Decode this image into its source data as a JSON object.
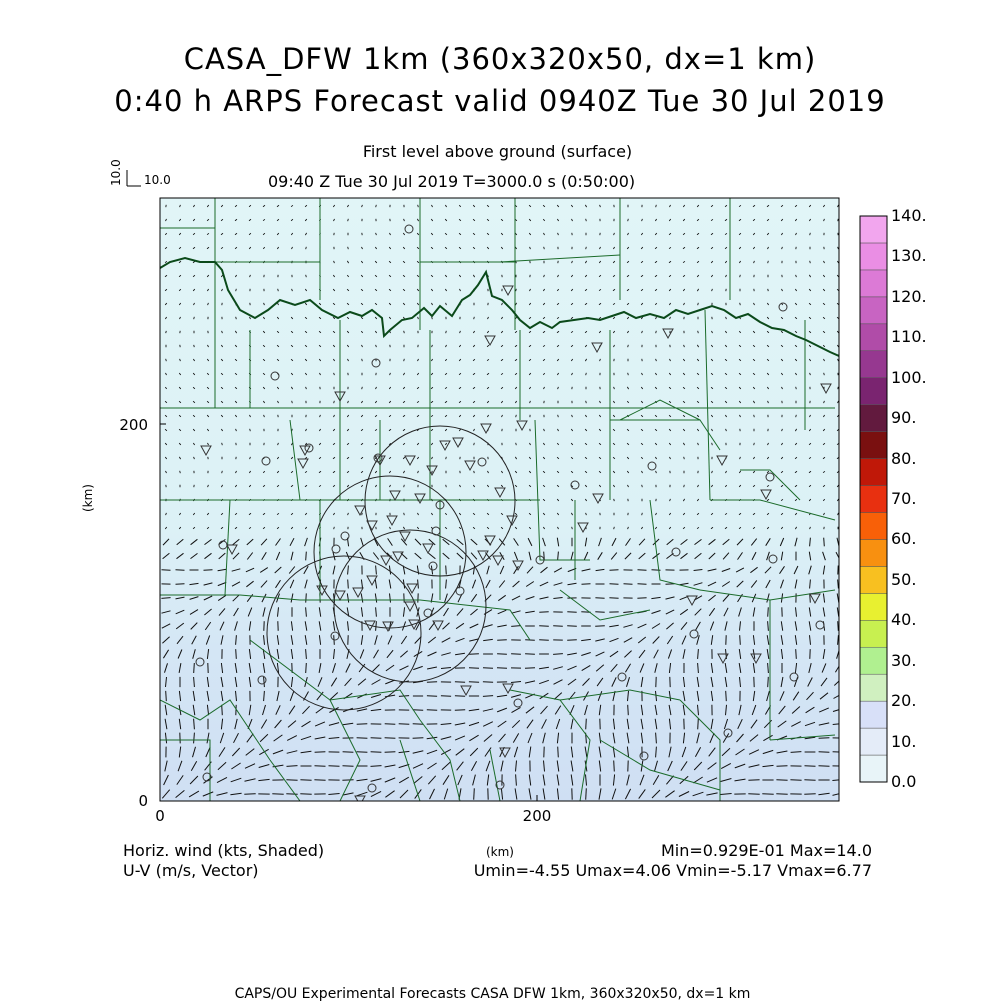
{
  "header": {
    "title_line1": "CASA_DFW 1km (360x320x50, dx=1 km)",
    "title_line2": "0:40 h ARPS Forecast valid 0940Z Tue 30 Jul 2019",
    "subtitle_level": "First level above ground (surface)",
    "subtitle_time": "09:40 Z Tue 30 Jul 2019    T=3000.0 s (0:50:00)"
  },
  "vector_scale": {
    "vertical_label": "10.0",
    "horizontal_label": "10.0"
  },
  "axes": {
    "x_ticks": [
      "0",
      "200"
    ],
    "y_ticks": [
      "0",
      "200"
    ],
    "x_unit": "(km)",
    "y_unit": "(km)"
  },
  "colorbar": {
    "labels": [
      "140.",
      "130.",
      "120.",
      "110.",
      "100.",
      "90.",
      "80.",
      "70.",
      "60.",
      "50.",
      "40.",
      "30.",
      "20.",
      "10.",
      "0.0"
    ],
    "colors": [
      "#f2a6ee",
      "#ea8ee4",
      "#dc7ad6",
      "#c864c2",
      "#b04ca8",
      "#963890",
      "#7a2470",
      "#621a3e",
      "#7a1010",
      "#c01808",
      "#e83010",
      "#f86008",
      "#f89010",
      "#f8c020",
      "#e8f030",
      "#c8f050",
      "#b0f090",
      "#d0f0c0",
      "#d8e0f8",
      "#e4ecf8",
      "#e8f4f8"
    ]
  },
  "bottom_left": {
    "line1": "Horiz. wind (kts, Shaded)",
    "line2": "U-V (m/s, Vector)"
  },
  "bottom_right": {
    "line1": "Min=0.929E-01 Max=14.0",
    "line2": "Umin=-4.55 Umax=4.06 Vmin=-5.17 Vmax=6.77"
  },
  "footer": "CAPS/OU Experimental Forecasts  CASA DFW 1km, 360x320x50, dx=1 km",
  "colors": {
    "field_light": "#dff4f7",
    "field_blue": "#d2e4f4",
    "county_line": "#1b6b2a",
    "state_border": "#0b4a1a"
  }
}
